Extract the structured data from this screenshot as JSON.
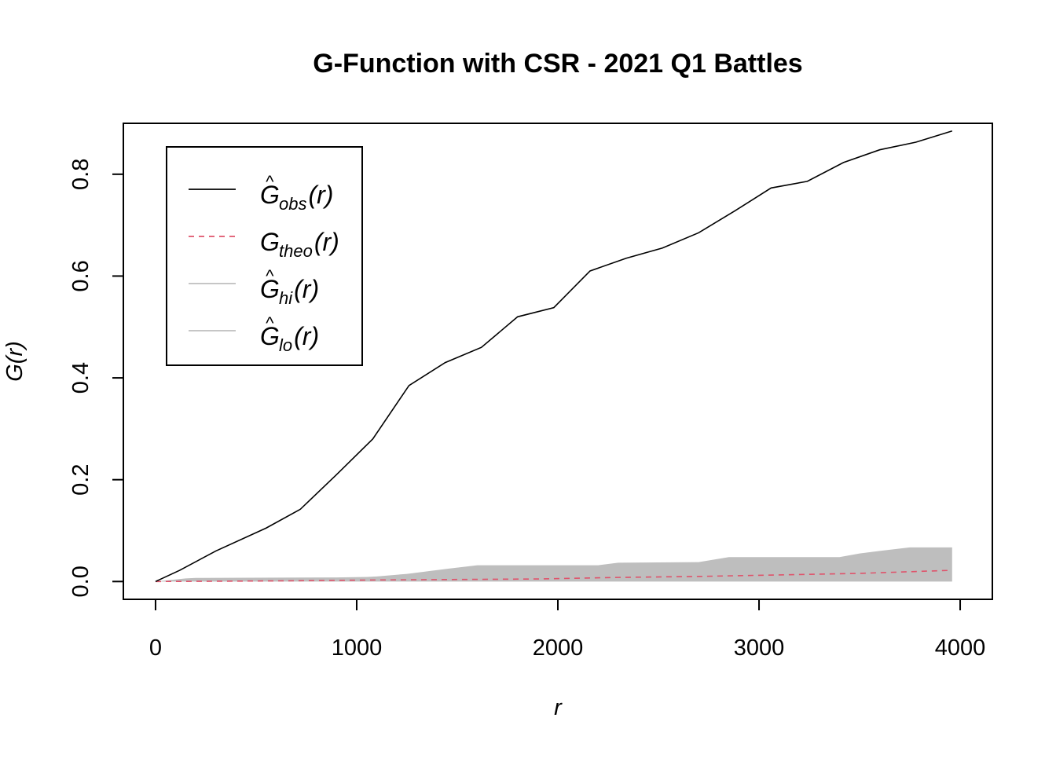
{
  "chart_data": {
    "type": "line",
    "title": "G-Function with CSR - 2021 Q1 Battles",
    "xlabel": "r",
    "ylabel": "G(r)",
    "xlim": [
      -160,
      4160
    ],
    "ylim": [
      -0.035,
      0.9
    ],
    "x_ticks": [
      0,
      1000,
      2000,
      3000,
      4000
    ],
    "x_tick_labels": [
      "0",
      "1000",
      "2000",
      "3000",
      "4000"
    ],
    "y_ticks": [
      0.0,
      0.2,
      0.4,
      0.6,
      0.8
    ],
    "y_tick_labels": [
      "0.0",
      "0.2",
      "0.4",
      "0.6",
      "0.8"
    ],
    "grid": false,
    "legend_position": "top-left",
    "colors": {
      "obs": "#000000",
      "theo": "#DF536B",
      "envelope": "#BEBEBE",
      "axis": "#000000"
    },
    "legend": [
      {
        "base": "G",
        "hat": true,
        "sub": "obs",
        "arg": "(r)",
        "style": "solid",
        "color": "#000000"
      },
      {
        "base": "G",
        "hat": false,
        "sub": "theo",
        "arg": "(r)",
        "style": "dashed",
        "color": "#DF536B"
      },
      {
        "base": "G",
        "hat": true,
        "sub": "hi",
        "arg": "(r)",
        "style": "solid",
        "color": "#BEBEBE"
      },
      {
        "base": "G",
        "hat": true,
        "sub": "lo",
        "arg": "(r)",
        "style": "solid",
        "color": "#BEBEBE"
      }
    ],
    "series": [
      {
        "key": "obs",
        "x": [
          0,
          120,
          300,
          550,
          720,
          900,
          1080,
          1260,
          1440,
          1620,
          1800,
          1980,
          2160,
          2340,
          2520,
          2700,
          2880,
          3060,
          3240,
          3420,
          3600,
          3780,
          3960
        ],
        "y": [
          0.0,
          0.022,
          0.06,
          0.105,
          0.142,
          0.21,
          0.28,
          0.385,
          0.43,
          0.46,
          0.52,
          0.538,
          0.61,
          0.635,
          0.655,
          0.685,
          0.728,
          0.773,
          0.786,
          0.823,
          0.848,
          0.863,
          0.885
        ]
      },
      {
        "key": "theo",
        "x": [
          0,
          300,
          700,
          1100,
          1500,
          1900,
          2300,
          2700,
          3100,
          3500,
          3960
        ],
        "y": [
          0.0,
          0.0005,
          0.0015,
          0.003,
          0.004,
          0.005,
          0.008,
          0.01,
          0.013,
          0.016,
          0.022
        ]
      },
      {
        "key": "hi",
        "x": [
          0,
          150,
          200,
          900,
          1050,
          1100,
          1250,
          1450,
          1600,
          2200,
          2300,
          2700,
          2850,
          3400,
          3500,
          3600,
          3750,
          3960
        ],
        "y": [
          0.0,
          0.006,
          0.007,
          0.008,
          0.009,
          0.01,
          0.015,
          0.025,
          0.032,
          0.032,
          0.037,
          0.038,
          0.048,
          0.048,
          0.055,
          0.06,
          0.067,
          0.067
        ]
      },
      {
        "key": "lo",
        "x": [
          0,
          3960
        ],
        "y": [
          0.0,
          0.0
        ]
      }
    ]
  }
}
